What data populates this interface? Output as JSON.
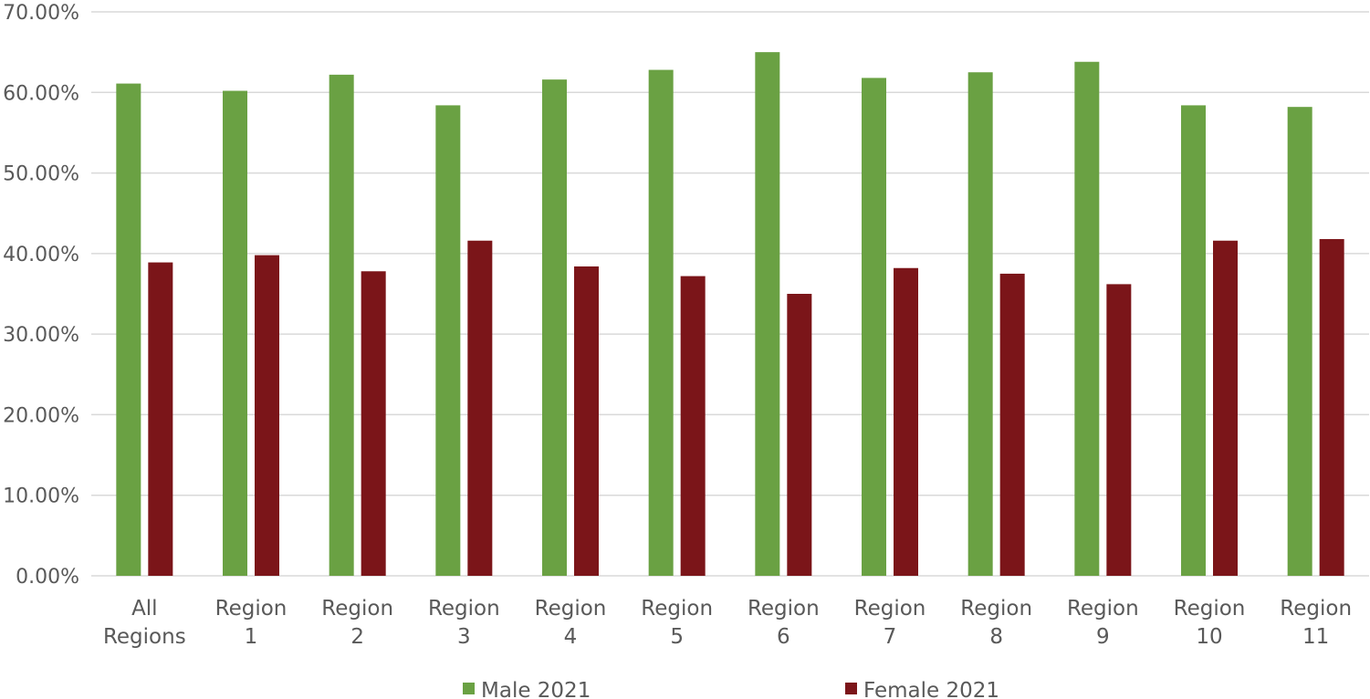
{
  "chart_data": {
    "type": "bar",
    "categories": [
      [
        "All",
        "Regions"
      ],
      [
        "Region",
        "1"
      ],
      [
        "Region",
        "2"
      ],
      [
        "Region",
        "3"
      ],
      [
        "Region",
        "4"
      ],
      [
        "Region",
        "5"
      ],
      [
        "Region",
        "6"
      ],
      [
        "Region",
        "7"
      ],
      [
        "Region",
        "8"
      ],
      [
        "Region",
        "9"
      ],
      [
        "Region",
        "10"
      ],
      [
        "Region",
        "11"
      ]
    ],
    "series": [
      {
        "name": "Male 2021",
        "color": "#6aa143",
        "values": [
          61.1,
          60.2,
          62.2,
          58.4,
          61.6,
          62.8,
          65.0,
          61.8,
          62.5,
          63.8,
          58.4,
          58.2
        ]
      },
      {
        "name": "Female 2021",
        "color": "#7b1519",
        "values": [
          38.9,
          39.8,
          37.8,
          41.6,
          38.4,
          37.2,
          35.0,
          38.2,
          37.5,
          36.2,
          41.6,
          41.8
        ]
      }
    ],
    "yticks": [
      "0.00%",
      "10.00%",
      "20.00%",
      "30.00%",
      "40.00%",
      "50.00%",
      "60.00%",
      "70.00%"
    ],
    "ylim": [
      0,
      70
    ],
    "grid": true,
    "legend_position": "bottom",
    "title": "",
    "xlabel": "",
    "ylabel": ""
  }
}
